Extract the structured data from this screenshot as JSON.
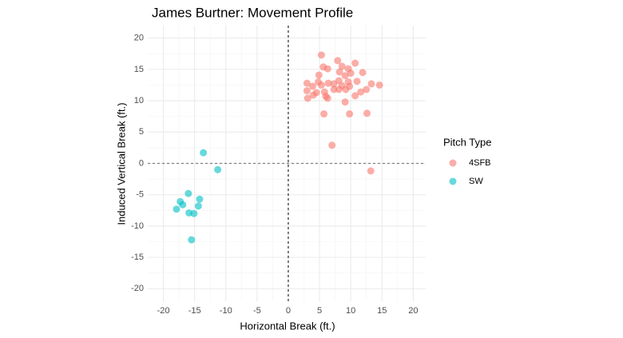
{
  "chart_data": {
    "type": "scatter",
    "title": "James Burtner: Movement Profile",
    "x_label": "Horizontal Break (ft.)",
    "y_label": "Induced Vertical Break (ft.)",
    "legend_title": "Pitch Type",
    "legend": "right",
    "grid": true,
    "xlim": [
      -22.5,
      22
    ],
    "ylim": [
      -22,
      22
    ],
    "xticks": [
      -20,
      -15,
      -10,
      -5,
      0,
      5,
      10,
      15,
      20
    ],
    "yticks": [
      -20,
      -15,
      -10,
      -5,
      0,
      5,
      10,
      15,
      20
    ],
    "series": [
      {
        "name": "4SFB",
        "color": "#F8766D",
        "x": [
          5.3,
          7.9,
          10.7,
          8.6,
          6.3,
          9.6,
          5.6,
          8.2,
          10.0,
          11.9,
          4.9,
          9.1,
          3.0,
          4.8,
          6.4,
          8.1,
          9.6,
          11.0,
          13.3,
          14.6,
          7.3,
          8.6,
          9.8,
          3.9,
          5.3,
          8.1,
          9.2,
          3.0,
          4.5,
          5.8,
          7.3,
          11.6,
          10.7,
          12.5,
          4.0,
          6.0,
          3.1,
          6.3,
          9.1,
          5.7,
          9.8,
          12.6,
          7.0,
          13.2
        ],
        "values": [
          17.3,
          16.4,
          16.0,
          15.5,
          15.1,
          15.1,
          15.4,
          14.6,
          14.4,
          14.5,
          14.1,
          14.0,
          12.8,
          13.0,
          12.8,
          13.2,
          13.0,
          13.1,
          12.7,
          12.5,
          12.7,
          12.4,
          12.3,
          12.3,
          12.5,
          11.8,
          11.8,
          11.6,
          11.3,
          11.4,
          11.8,
          11.4,
          10.8,
          11.8,
          10.9,
          10.7,
          10.4,
          10.4,
          9.8,
          7.9,
          7.9,
          8.0,
          2.9,
          -1.2
        ]
      },
      {
        "name": "SW",
        "color": "#00BFC4",
        "x": [
          -13.6,
          -11.3,
          -16.0,
          -14.2,
          -17.3,
          -16.9,
          -14.4,
          -17.9,
          -15.9,
          -15.1,
          -15.5
        ],
        "values": [
          1.7,
          -1.0,
          -4.8,
          -5.7,
          -6.1,
          -6.6,
          -6.8,
          -7.3,
          -7.9,
          -8.0,
          -12.2
        ]
      }
    ]
  }
}
